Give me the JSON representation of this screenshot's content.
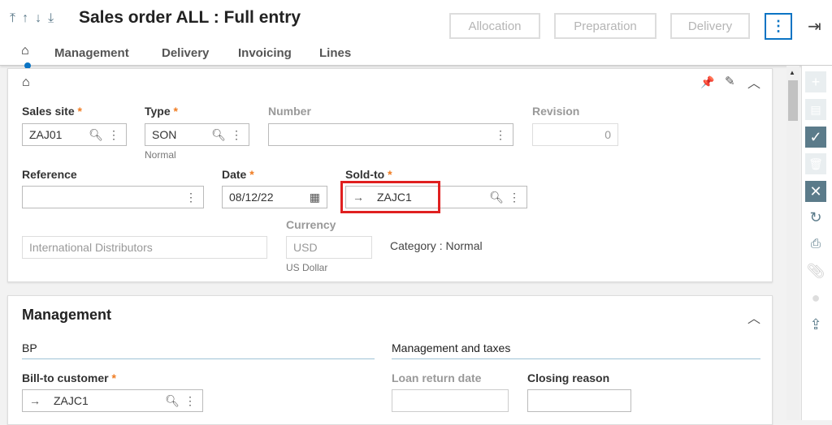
{
  "header": {
    "title": "Sales order ALL : Full entry",
    "nav_icons": [
      "first-icon",
      "up-icon",
      "down-icon",
      "last-icon"
    ],
    "buttons": [
      "Allocation",
      "Preparation",
      "Delivery"
    ],
    "more": "⋮",
    "exit_icon": "logout-icon"
  },
  "tabs": [
    "Management",
    "Delivery",
    "Invoicing",
    "Lines"
  ],
  "form": {
    "sales_site": {
      "label": "Sales site",
      "value": "ZAJ01"
    },
    "type": {
      "label": "Type",
      "value": "SON",
      "sub": "Normal"
    },
    "number": {
      "label": "Number",
      "value": ""
    },
    "revision": {
      "label": "Revision",
      "value": "0"
    },
    "reference": {
      "label": "Reference",
      "value": ""
    },
    "date": {
      "label": "Date",
      "value": "08/12/22"
    },
    "sold_to": {
      "label": "Sold-to",
      "value": "ZAJC1"
    },
    "customer_name": {
      "placeholder": "International Distributors"
    },
    "currency": {
      "label": "Currency",
      "value": "USD",
      "sub": "US Dollar"
    },
    "category": "Category : Normal"
  },
  "management": {
    "title": "Management",
    "bp": "BP",
    "taxes": "Management and taxes",
    "bill_to": {
      "label": "Bill-to customer",
      "value": "ZAJC1"
    },
    "loan_return": {
      "label": "Loan return date",
      "value": ""
    },
    "closing_reason": {
      "label": "Closing reason",
      "value": ""
    }
  },
  "required_mark": "*",
  "colors": {
    "accent": "#0b74c4",
    "highlight": "#e02020",
    "sidebar_active": "#5b7b8a"
  }
}
